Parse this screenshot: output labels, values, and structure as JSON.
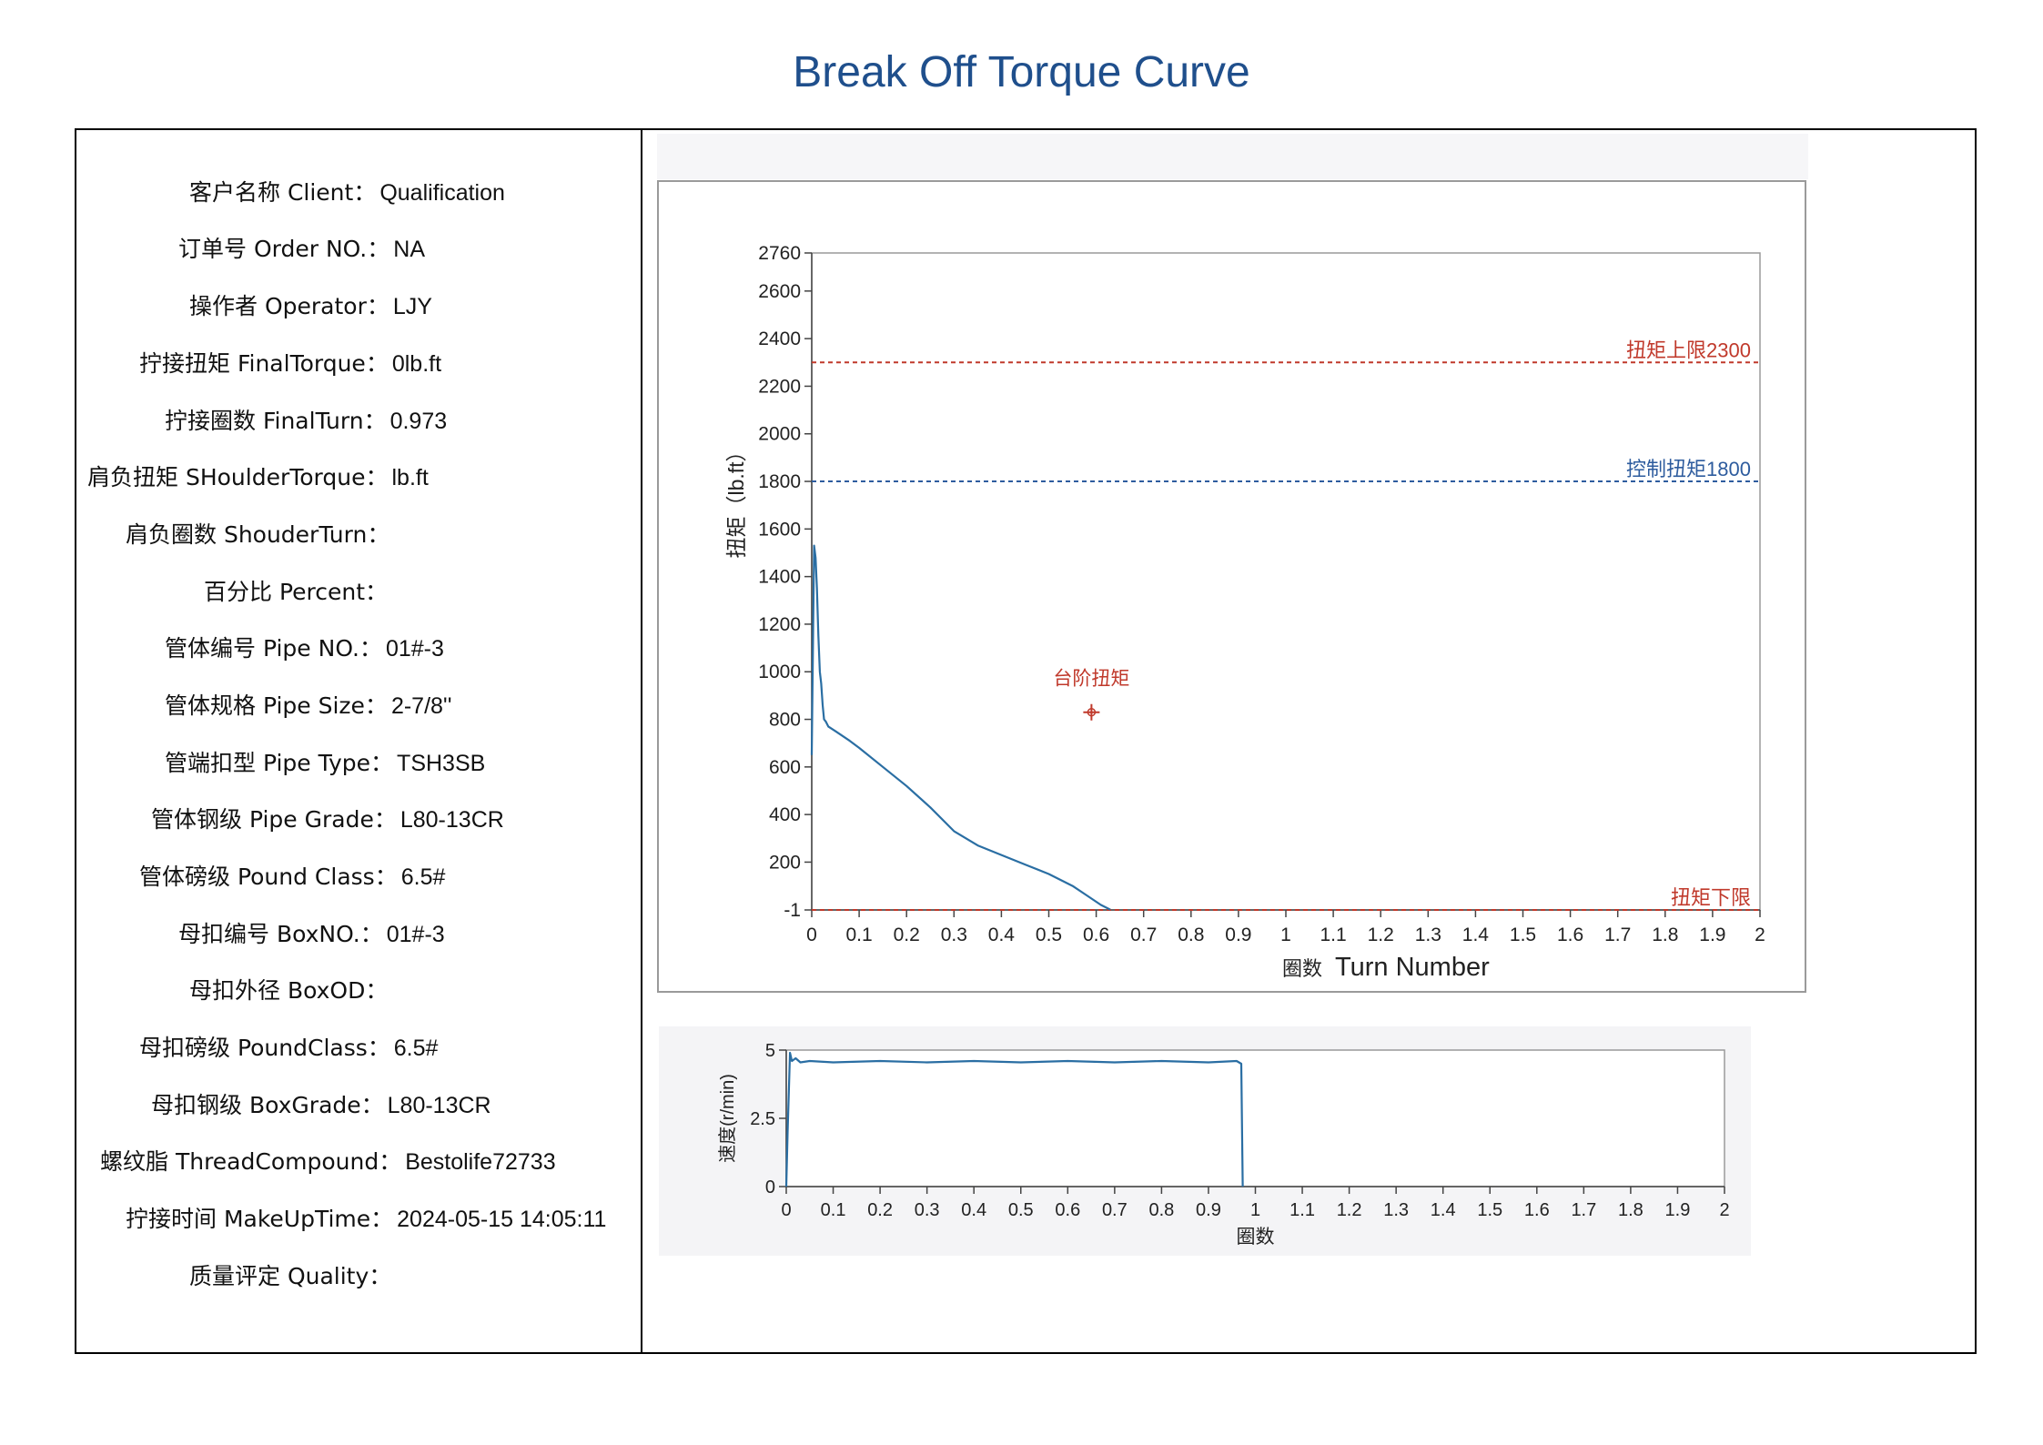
{
  "page": {
    "title": "Break Off Torque Curve"
  },
  "info": [
    {
      "label": "客户名称 Client：",
      "value": "Qualification"
    },
    {
      "label": "订单号 Order NO.：",
      "value": "NA"
    },
    {
      "label": "操作者 Operator：",
      "value": "LJY"
    },
    {
      "label": "拧接扭矩 FinalTorque：",
      "value": "0lb.ft"
    },
    {
      "label": "拧接圈数 FinalTurn：",
      "value": "0.973"
    },
    {
      "label": "肩负扭矩 SHoulderTorque：",
      "value": "lb.ft"
    },
    {
      "label": "肩负圈数 ShouderTurn：",
      "value": ""
    },
    {
      "label": "百分比 Percent：",
      "value": ""
    },
    {
      "label": "管体编号 Pipe NO.：",
      "value": "01#-3"
    },
    {
      "label": "管体规格 Pipe Size：",
      "value": "2-7/8''"
    },
    {
      "label": "管端扣型 Pipe Type：",
      "value": "TSH3SB"
    },
    {
      "label": "管体钢级 Pipe Grade：",
      "value": "L80-13CR"
    },
    {
      "label": "管体磅级 Pound Class：",
      "value": "6.5#"
    },
    {
      "label": "母扣编号 BoxNO.：",
      "value": "01#-3"
    },
    {
      "label": "母扣外径 BoxOD：",
      "value": ""
    },
    {
      "label": "母扣磅级 PoundClass：",
      "value": "6.5#"
    },
    {
      "label": "母扣钢级 BoxGrade：",
      "value": "L80-13CR"
    },
    {
      "label": "螺纹脂 ThreadCompound：",
      "value": "Bestolife72733"
    },
    {
      "label": "拧接时间 MakeUpTime：",
      "value": "2024-05-15 14:05:11"
    },
    {
      "label": "质量评定 Quality：",
      "value": ""
    }
  ],
  "chart_data": [
    {
      "type": "line",
      "ylabel": "扭矩（lb.ft）",
      "xlabel_cn": "圈数",
      "xlabel_en": "Turn Number",
      "xlim": [
        0,
        2
      ],
      "ylim": [
        -1,
        2760
      ],
      "xticks": [
        0,
        0.1,
        0.2,
        0.3,
        0.4,
        0.5,
        0.6,
        0.7,
        0.8,
        0.9,
        1,
        1.1,
        1.2,
        1.3,
        1.4,
        1.5,
        1.6,
        1.7,
        1.8,
        1.9,
        2
      ],
      "yticks": [
        -1,
        200,
        400,
        600,
        800,
        1000,
        1200,
        1400,
        1600,
        1800,
        2000,
        2200,
        2400,
        2600,
        2760
      ],
      "grid": false,
      "reference_lines": [
        {
          "label": "扭矩上限2300",
          "y": 2300,
          "color": "#c0392b"
        },
        {
          "label": "控制扭矩1800",
          "y": 1800,
          "color": "#2e5c9e"
        },
        {
          "label": "扭矩下限",
          "y": -1,
          "color": "#c0392b"
        }
      ],
      "annotation": {
        "label": "台阶扭矩",
        "x": 0.59,
        "y": 830,
        "color": "#c0392b"
      },
      "series": [
        {
          "color": "#2a6ea3",
          "x": [
            0,
            0.003,
            0.005,
            0.008,
            0.011,
            0.014,
            0.017,
            0.02,
            0.023,
            0.026,
            0.03,
            0.035,
            0.05,
            0.08,
            0.1,
            0.15,
            0.2,
            0.25,
            0.3,
            0.35,
            0.4,
            0.45,
            0.5,
            0.55,
            0.58,
            0.61,
            0.63
          ],
          "y": [
            650,
            1200,
            1530,
            1480,
            1350,
            1150,
            1000,
            950,
            860,
            800,
            790,
            770,
            750,
            710,
            680,
            600,
            520,
            430,
            330,
            270,
            230,
            190,
            150,
            100,
            60,
            20,
            0
          ]
        }
      ]
    },
    {
      "type": "line",
      "ylabel": "速度(r/min)",
      "xlabel": "圈数",
      "xlim": [
        0,
        2
      ],
      "ylim": [
        0,
        5
      ],
      "xticks": [
        0,
        0.1,
        0.2,
        0.3,
        0.4,
        0.5,
        0.6,
        0.7,
        0.8,
        0.9,
        1,
        1.1,
        1.2,
        1.3,
        1.4,
        1.5,
        1.6,
        1.7,
        1.8,
        1.9,
        2
      ],
      "yticks": [
        0,
        2.5,
        5
      ],
      "yticklabels": [
        "0",
        "2.5",
        "5"
      ],
      "grid": false,
      "series": [
        {
          "color": "#2a6ea3",
          "x": [
            0,
            0.003,
            0.008,
            0.012,
            0.02,
            0.03,
            0.05,
            0.1,
            0.2,
            0.3,
            0.4,
            0.5,
            0.6,
            0.7,
            0.8,
            0.9,
            0.96,
            0.97,
            0.973
          ],
          "y": [
            0,
            2,
            4.9,
            4.6,
            4.7,
            4.55,
            4.6,
            4.55,
            4.6,
            4.55,
            4.6,
            4.55,
            4.6,
            4.55,
            4.6,
            4.55,
            4.6,
            4.5,
            0
          ]
        }
      ]
    }
  ]
}
